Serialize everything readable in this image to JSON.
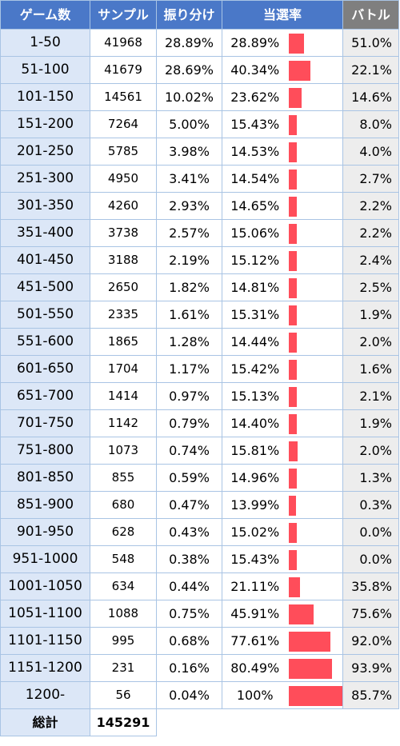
{
  "headers": {
    "games": "ゲーム数",
    "samples": "サンプル",
    "share": "振り分け",
    "rate": "当選率",
    "battle": "バトル"
  },
  "rows": [
    {
      "games": "1-50",
      "samples": "41968",
      "share": "28.89%",
      "rate": "28.89%",
      "rate_value": 28.89,
      "battle": "51.0%"
    },
    {
      "games": "51-100",
      "samples": "41679",
      "share": "28.69%",
      "rate": "40.34%",
      "rate_value": 40.34,
      "battle": "22.1%"
    },
    {
      "games": "101-150",
      "samples": "14561",
      "share": "10.02%",
      "rate": "23.62%",
      "rate_value": 23.62,
      "battle": "14.6%"
    },
    {
      "games": "151-200",
      "samples": "7264",
      "share": "5.00%",
      "rate": "15.43%",
      "rate_value": 15.43,
      "battle": "8.0%"
    },
    {
      "games": "201-250",
      "samples": "5785",
      "share": "3.98%",
      "rate": "14.53%",
      "rate_value": 14.53,
      "battle": "4.0%"
    },
    {
      "games": "251-300",
      "samples": "4950",
      "share": "3.41%",
      "rate": "14.54%",
      "rate_value": 14.54,
      "battle": "2.7%"
    },
    {
      "games": "301-350",
      "samples": "4260",
      "share": "2.93%",
      "rate": "14.65%",
      "rate_value": 14.65,
      "battle": "2.2%"
    },
    {
      "games": "351-400",
      "samples": "3738",
      "share": "2.57%",
      "rate": "15.06%",
      "rate_value": 15.06,
      "battle": "2.2%"
    },
    {
      "games": "401-450",
      "samples": "3188",
      "share": "2.19%",
      "rate": "15.12%",
      "rate_value": 15.12,
      "battle": "2.4%"
    },
    {
      "games": "451-500",
      "samples": "2650",
      "share": "1.82%",
      "rate": "14.81%",
      "rate_value": 14.81,
      "battle": "2.5%"
    },
    {
      "games": "501-550",
      "samples": "2335",
      "share": "1.61%",
      "rate": "15.31%",
      "rate_value": 15.31,
      "battle": "1.9%"
    },
    {
      "games": "551-600",
      "samples": "1865",
      "share": "1.28%",
      "rate": "14.44%",
      "rate_value": 14.44,
      "battle": "2.0%"
    },
    {
      "games": "601-650",
      "samples": "1704",
      "share": "1.17%",
      "rate": "15.42%",
      "rate_value": 15.42,
      "battle": "1.6%"
    },
    {
      "games": "651-700",
      "samples": "1414",
      "share": "0.97%",
      "rate": "15.13%",
      "rate_value": 15.13,
      "battle": "2.1%"
    },
    {
      "games": "701-750",
      "samples": "1142",
      "share": "0.79%",
      "rate": "14.40%",
      "rate_value": 14.4,
      "battle": "1.9%"
    },
    {
      "games": "751-800",
      "samples": "1073",
      "share": "0.74%",
      "rate": "15.81%",
      "rate_value": 15.81,
      "battle": "2.0%"
    },
    {
      "games": "801-850",
      "samples": "855",
      "share": "0.59%",
      "rate": "14.96%",
      "rate_value": 14.96,
      "battle": "1.3%"
    },
    {
      "games": "851-900",
      "samples": "680",
      "share": "0.47%",
      "rate": "13.99%",
      "rate_value": 13.99,
      "battle": "0.3%"
    },
    {
      "games": "901-950",
      "samples": "628",
      "share": "0.43%",
      "rate": "15.02%",
      "rate_value": 15.02,
      "battle": "0.0%"
    },
    {
      "games": "951-1000",
      "samples": "548",
      "share": "0.38%",
      "rate": "15.43%",
      "rate_value": 15.43,
      "battle": "0.0%"
    },
    {
      "games": "1001-1050",
      "samples": "634",
      "share": "0.44%",
      "rate": "21.11%",
      "rate_value": 21.11,
      "battle": "35.8%"
    },
    {
      "games": "1051-1100",
      "samples": "1088",
      "share": "0.75%",
      "rate": "45.91%",
      "rate_value": 45.91,
      "battle": "75.6%"
    },
    {
      "games": "1101-1150",
      "samples": "995",
      "share": "0.68%",
      "rate": "77.61%",
      "rate_value": 77.61,
      "battle": "92.0%"
    },
    {
      "games": "1151-1200",
      "samples": "231",
      "share": "0.16%",
      "rate": "80.49%",
      "rate_value": 80.49,
      "battle": "93.9%"
    },
    {
      "games": "1200-",
      "samples": "56",
      "share": "0.04%",
      "rate": "100%",
      "rate_value": 100,
      "battle": "85.7%"
    }
  ],
  "total": {
    "label": "総計",
    "value": "145291"
  },
  "colors": {
    "header_bg": "#4a78c8",
    "battle_header_bg": "#7f7f7f",
    "games_bg": "#dce7f7",
    "battle_bg": "#ededed",
    "bar": "#ff4d5a",
    "grid": "#a9c4e4"
  }
}
